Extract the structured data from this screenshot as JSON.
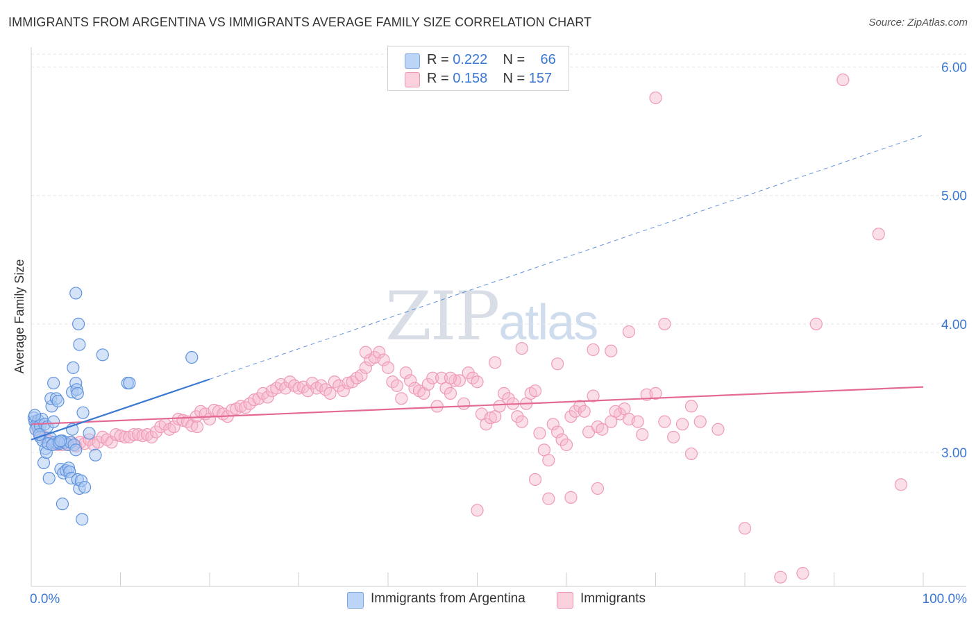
{
  "title": "IMMIGRANTS FROM ARGENTINA VS IMMIGRANTS AVERAGE FAMILY SIZE CORRELATION CHART",
  "source": "Source: ZipAtlas.com",
  "watermark": {
    "zip": "ZIP",
    "atlas": "atlas"
  },
  "legend": {
    "rows": [
      {
        "r_label": "R = ",
        "r_value": "0.222",
        "n_label": "N = ",
        "n_value": "66",
        "color": "#a9c8f2"
      },
      {
        "r_label": "R = ",
        "r_value": "0.158",
        "n_label": "N = ",
        "n_value": "157",
        "color": "#f6b8cb"
      }
    ]
  },
  "bottom_legend": [
    {
      "label": "Immigrants from Argentina",
      "color": "#a9c8f2"
    },
    {
      "label": "Immigrants",
      "color": "#f6b8cb"
    }
  ],
  "colors": {
    "blue": "#3a78d4",
    "blue_fill": "#a9c8f2",
    "pink": "#e46a94",
    "pink_fill": "#f6b8cb",
    "tick_label": "#3a78d4",
    "grid": "#e3e3e3"
  },
  "chart_data": {
    "type": "scatter",
    "title": "IMMIGRANTS FROM ARGENTINA VS IMMIGRANTS AVERAGE FAMILY SIZE CORRELATION CHART",
    "xlabel": "",
    "ylabel": "Average Family Size",
    "xlim": [
      0,
      100
    ],
    "ylim": [
      2.0,
      6.15
    ],
    "x_tick_labels": [
      "0.0%",
      "100.0%"
    ],
    "y_ticks": [
      3.0,
      4.0,
      5.0,
      6.0
    ],
    "y_tick_labels": [
      "3.00",
      "4.00",
      "5.00",
      "6.00"
    ],
    "grid": true,
    "series": [
      {
        "name": "Immigrants from Argentina",
        "color": "#3a78d4",
        "trend": {
          "x": [
            0,
            20
          ],
          "y": [
            3.1,
            3.57
          ],
          "extended_x": [
            20,
            100
          ],
          "extended_y": [
            3.57,
            5.47
          ]
        },
        "points": [
          [
            0.3,
            3.27
          ],
          [
            0.4,
            3.24
          ],
          [
            0.6,
            3.22
          ],
          [
            0.7,
            3.2
          ],
          [
            0.8,
            3.25
          ],
          [
            0.5,
            3.18
          ],
          [
            1.0,
            3.21
          ],
          [
            1.2,
            3.26
          ],
          [
            1.5,
            3.22
          ],
          [
            1.8,
            3.2
          ],
          [
            1.0,
            3.12
          ],
          [
            1.3,
            3.09
          ],
          [
            1.6,
            3.03
          ],
          [
            1.4,
            2.92
          ],
          [
            1.7,
            3.0
          ],
          [
            2.0,
            2.8
          ],
          [
            2.3,
            3.36
          ],
          [
            2.2,
            3.42
          ],
          [
            2.8,
            3.42
          ],
          [
            3.0,
            3.4
          ],
          [
            2.5,
            3.54
          ],
          [
            2.5,
            3.24
          ],
          [
            2.2,
            3.11
          ],
          [
            2.6,
            3.08
          ],
          [
            2.9,
            3.07
          ],
          [
            3.2,
            3.07
          ],
          [
            3.5,
            3.09
          ],
          [
            3.8,
            3.08
          ],
          [
            4.1,
            3.06
          ],
          [
            4.4,
            3.08
          ],
          [
            3.3,
            2.87
          ],
          [
            3.6,
            2.84
          ],
          [
            3.9,
            2.86
          ],
          [
            4.2,
            2.88
          ],
          [
            4.3,
            2.85
          ],
          [
            4.5,
            2.8
          ],
          [
            4.8,
            3.06
          ],
          [
            5.0,
            3.02
          ],
          [
            4.6,
            3.18
          ],
          [
            5.2,
            2.79
          ],
          [
            5.4,
            2.72
          ],
          [
            5.6,
            2.78
          ],
          [
            6.0,
            2.73
          ],
          [
            5.8,
            3.31
          ],
          [
            6.5,
            3.15
          ],
          [
            7.2,
            2.98
          ],
          [
            3.5,
            2.6
          ],
          [
            5.7,
            2.48
          ],
          [
            4.7,
            3.66
          ],
          [
            4.6,
            3.47
          ],
          [
            5.0,
            3.54
          ],
          [
            5.1,
            3.49
          ],
          [
            5.2,
            3.46
          ],
          [
            5.0,
            4.24
          ],
          [
            5.3,
            4.0
          ],
          [
            5.4,
            3.84
          ],
          [
            8.0,
            3.76
          ],
          [
            10.8,
            3.54
          ],
          [
            11.0,
            3.54
          ],
          [
            18.0,
            3.74
          ],
          [
            0.4,
            3.29
          ],
          [
            0.9,
            3.14
          ],
          [
            1.9,
            3.07
          ],
          [
            2.4,
            3.06
          ],
          [
            3.1,
            3.08
          ],
          [
            3.3,
            3.09
          ]
        ]
      },
      {
        "name": "Immigrants",
        "color": "#e46a94",
        "trend": {
          "x": [
            0,
            100
          ],
          "y": [
            3.22,
            3.51
          ]
        },
        "points": [
          [
            0.8,
            3.17
          ],
          [
            1.0,
            3.15
          ],
          [
            1.5,
            3.12
          ],
          [
            2.0,
            3.09
          ],
          [
            2.5,
            3.07
          ],
          [
            3.0,
            3.06
          ],
          [
            3.5,
            3.06
          ],
          [
            4.0,
            3.07
          ],
          [
            4.5,
            3.08
          ],
          [
            5.0,
            3.05
          ],
          [
            5.5,
            3.08
          ],
          [
            6.0,
            3.07
          ],
          [
            6.5,
            3.1
          ],
          [
            7.0,
            3.06
          ],
          [
            7.5,
            3.08
          ],
          [
            8.0,
            3.12
          ],
          [
            8.5,
            3.1
          ],
          [
            9.0,
            3.08
          ],
          [
            9.5,
            3.14
          ],
          [
            10.0,
            3.13
          ],
          [
            10.5,
            3.12
          ],
          [
            11.0,
            3.12
          ],
          [
            11.5,
            3.14
          ],
          [
            12.0,
            3.14
          ],
          [
            12.5,
            3.13
          ],
          [
            13.0,
            3.14
          ],
          [
            13.5,
            3.12
          ],
          [
            14.0,
            3.16
          ],
          [
            14.5,
            3.2
          ],
          [
            15.0,
            3.22
          ],
          [
            15.5,
            3.18
          ],
          [
            16.0,
            3.2
          ],
          [
            16.5,
            3.26
          ],
          [
            17.0,
            3.25
          ],
          [
            17.5,
            3.24
          ],
          [
            18.0,
            3.21
          ],
          [
            18.5,
            3.28
          ],
          [
            19.0,
            3.32
          ],
          [
            19.5,
            3.3
          ],
          [
            20.0,
            3.26
          ],
          [
            20.5,
            3.33
          ],
          [
            21.0,
            3.32
          ],
          [
            21.5,
            3.3
          ],
          [
            22.0,
            3.28
          ],
          [
            22.5,
            3.33
          ],
          [
            23.0,
            3.34
          ],
          [
            23.5,
            3.36
          ],
          [
            24.0,
            3.35
          ],
          [
            24.5,
            3.38
          ],
          [
            25.0,
            3.41
          ],
          [
            25.5,
            3.42
          ],
          [
            26.0,
            3.46
          ],
          [
            26.5,
            3.43
          ],
          [
            27.0,
            3.48
          ],
          [
            27.5,
            3.5
          ],
          [
            28.0,
            3.53
          ],
          [
            28.5,
            3.5
          ],
          [
            29.0,
            3.55
          ],
          [
            29.5,
            3.52
          ],
          [
            30.0,
            3.5
          ],
          [
            30.5,
            3.51
          ],
          [
            31.0,
            3.48
          ],
          [
            31.5,
            3.54
          ],
          [
            32.0,
            3.5
          ],
          [
            32.5,
            3.52
          ],
          [
            33.0,
            3.49
          ],
          [
            33.5,
            3.46
          ],
          [
            34.0,
            3.55
          ],
          [
            34.5,
            3.52
          ],
          [
            35.0,
            3.48
          ],
          [
            35.5,
            3.54
          ],
          [
            36.0,
            3.55
          ],
          [
            36.5,
            3.58
          ],
          [
            37.0,
            3.6
          ],
          [
            37.5,
            3.66
          ],
          [
            38.0,
            3.72
          ],
          [
            38.5,
            3.74
          ],
          [
            39.0,
            3.78
          ],
          [
            39.5,
            3.72
          ],
          [
            40.0,
            3.66
          ],
          [
            40.5,
            3.55
          ],
          [
            41.0,
            3.52
          ],
          [
            41.5,
            3.42
          ],
          [
            42.0,
            3.62
          ],
          [
            42.5,
            3.56
          ],
          [
            43.0,
            3.5
          ],
          [
            43.5,
            3.48
          ],
          [
            44.0,
            3.46
          ],
          [
            44.5,
            3.53
          ],
          [
            45.0,
            3.58
          ],
          [
            45.5,
            3.36
          ],
          [
            46.0,
            3.58
          ],
          [
            46.5,
            3.5
          ],
          [
            47.0,
            3.46
          ],
          [
            47.5,
            3.56
          ],
          [
            48.0,
            3.56
          ],
          [
            48.5,
            3.38
          ],
          [
            49.0,
            3.62
          ],
          [
            49.5,
            3.58
          ],
          [
            50.0,
            3.55
          ],
          [
            50.5,
            3.3
          ],
          [
            51.0,
            3.22
          ],
          [
            51.5,
            3.27
          ],
          [
            52.0,
            3.28
          ],
          [
            52.5,
            3.36
          ],
          [
            53.0,
            3.46
          ],
          [
            53.5,
            3.42
          ],
          [
            54.0,
            3.38
          ],
          [
            54.5,
            3.28
          ],
          [
            55.0,
            3.24
          ],
          [
            55.5,
            3.38
          ],
          [
            56.0,
            3.46
          ],
          [
            56.5,
            3.48
          ],
          [
            57.0,
            3.15
          ],
          [
            57.5,
            3.02
          ],
          [
            58.0,
            2.94
          ],
          [
            58.5,
            3.22
          ],
          [
            59.0,
            3.16
          ],
          [
            59.5,
            3.1
          ],
          [
            60.0,
            3.06
          ],
          [
            60.5,
            3.28
          ],
          [
            61.0,
            3.32
          ],
          [
            61.5,
            3.36
          ],
          [
            62.0,
            3.32
          ],
          [
            62.5,
            3.16
          ],
          [
            63.0,
            3.44
          ],
          [
            63.5,
            3.2
          ],
          [
            64.0,
            3.18
          ],
          [
            65.0,
            3.24
          ],
          [
            66.0,
            3.3
          ],
          [
            66.5,
            3.34
          ],
          [
            67.0,
            3.26
          ],
          [
            68.0,
            3.24
          ],
          [
            68.5,
            3.14
          ],
          [
            69.0,
            3.45
          ],
          [
            70.0,
            3.46
          ],
          [
            71.0,
            3.24
          ],
          [
            72.0,
            3.12
          ],
          [
            73.0,
            3.22
          ],
          [
            74.0,
            3.36
          ],
          [
            63.0,
            3.8
          ],
          [
            65.0,
            3.79
          ],
          [
            67.0,
            3.94
          ],
          [
            71.0,
            4.0
          ],
          [
            59.0,
            3.69
          ],
          [
            55.0,
            3.81
          ],
          [
            52.0,
            3.7
          ],
          [
            50.0,
            2.55
          ],
          [
            60.5,
            2.65
          ],
          [
            56.5,
            2.79
          ],
          [
            58.0,
            2.64
          ],
          [
            63.5,
            2.72
          ],
          [
            65.5,
            3.32
          ],
          [
            74.0,
            2.99
          ],
          [
            77.0,
            3.18
          ],
          [
            80.0,
            2.41
          ],
          [
            84.0,
            2.03
          ],
          [
            86.5,
            2.06
          ],
          [
            88.0,
            4.0
          ],
          [
            91.0,
            5.9
          ],
          [
            95.0,
            4.7
          ],
          [
            97.5,
            2.75
          ],
          [
            70.0,
            5.76
          ],
          [
            75.0,
            3.24
          ],
          [
            37.5,
            3.78
          ],
          [
            47.0,
            3.58
          ],
          [
            18.6,
            3.2
          ]
        ]
      }
    ]
  }
}
